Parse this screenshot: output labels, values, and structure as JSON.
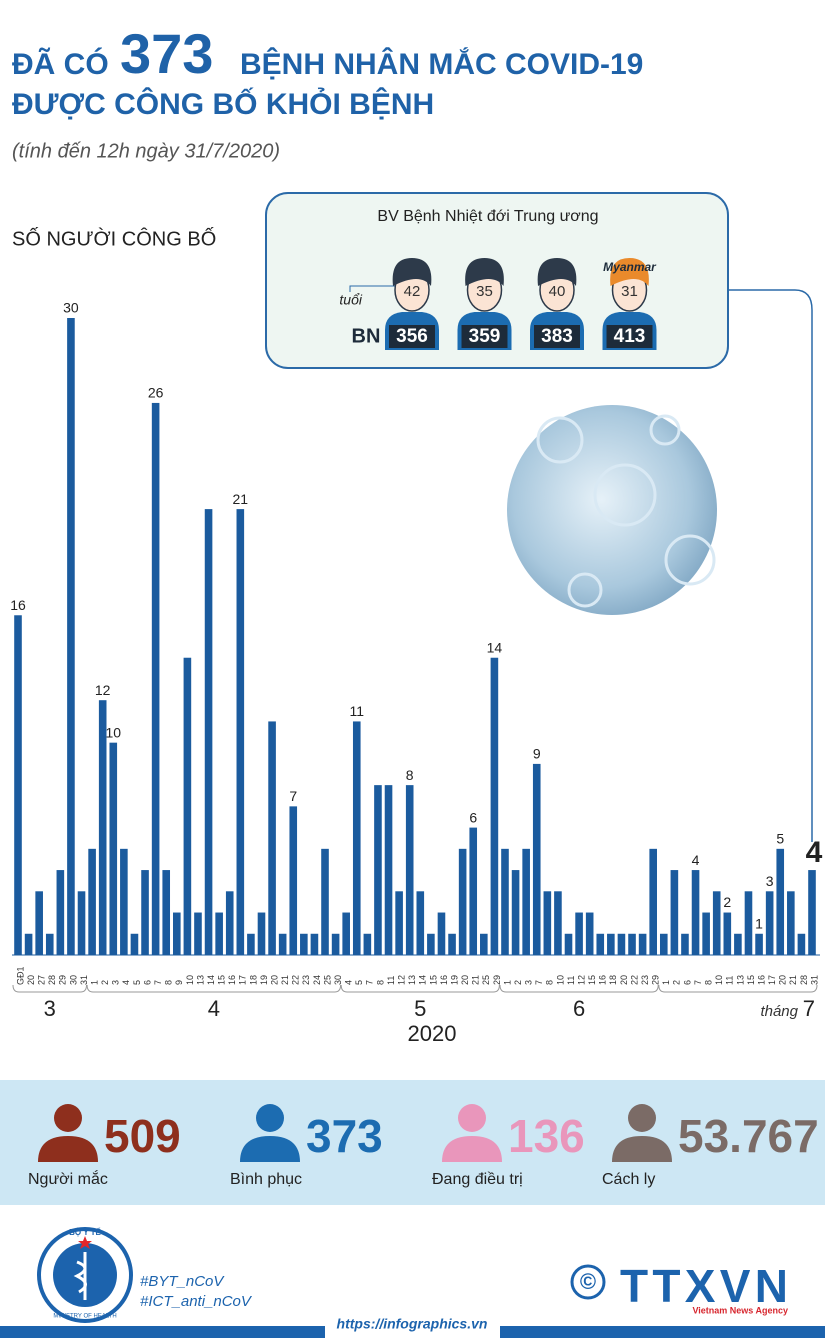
{
  "header": {
    "prefix": "ĐÃ CÓ",
    "number": "373",
    "suffix": "BỆNH NHÂN MẮC COVID-19",
    "line2": "ĐƯỢC CÔNG BỐ KHỎI BỆNH",
    "subtitle": "(tính đến 12h ngày 31/7/2020)"
  },
  "panel": {
    "title": "BV Bệnh Nhiệt đới Trung ương",
    "age_label": "tuổi",
    "bn_label": "BN",
    "patients": [
      {
        "age": 42,
        "id": 356
      },
      {
        "age": 35,
        "id": 359
      },
      {
        "age": 40,
        "id": 383
      },
      {
        "age": 31,
        "id": 413,
        "note": "Myanmar"
      }
    ]
  },
  "chart_data": {
    "type": "bar",
    "y_label": "SỐ NGƯỜI CÔNG BỐ",
    "color": "#1b5b9e",
    "ylim": [
      0,
      30
    ],
    "month_word": "tháng",
    "year": "2020",
    "groups": [
      {
        "label": "3",
        "categories": [
          "GĐ1",
          "20",
          "27",
          "28",
          "29",
          "30",
          "31"
        ],
        "values": [
          16,
          1,
          3,
          1,
          4,
          30,
          3
        ],
        "value_labels": [
          "16",
          null,
          null,
          null,
          null,
          "30",
          null
        ]
      },
      {
        "label": "4",
        "categories": [
          "1",
          "2",
          "3",
          "4",
          "5",
          "6",
          "7",
          "8",
          "9",
          "10",
          "13",
          "14",
          "15",
          "16",
          "17",
          "18",
          "19",
          "20",
          "21",
          "22",
          "23",
          "24",
          "25",
          "30"
        ],
        "values": [
          5,
          12,
          10,
          5,
          1,
          4,
          26,
          4,
          2,
          14,
          2,
          21,
          2,
          3,
          21,
          1,
          2,
          11,
          1,
          7,
          1,
          1,
          5,
          1
        ],
        "value_labels": [
          null,
          "12",
          "10",
          null,
          null,
          null,
          "26",
          null,
          null,
          null,
          null,
          null,
          null,
          null,
          "21",
          null,
          null,
          null,
          null,
          "7",
          null,
          null,
          null,
          null
        ]
      },
      {
        "label": "5",
        "categories": [
          "4",
          "5",
          "7",
          "8",
          "11",
          "12",
          "13",
          "14",
          "15",
          "16",
          "19",
          "20",
          "21",
          "25",
          "29"
        ],
        "values": [
          2,
          11,
          1,
          8,
          8,
          3,
          8,
          3,
          1,
          2,
          1,
          5,
          6,
          1,
          14
        ],
        "value_labels": [
          null,
          "11",
          null,
          null,
          null,
          null,
          "8",
          null,
          null,
          null,
          null,
          null,
          "6",
          null,
          "14"
        ]
      },
      {
        "label": "6",
        "categories": [
          "1",
          "2",
          "3",
          "7",
          "8",
          "10",
          "11",
          "12",
          "15",
          "16",
          "18",
          "20",
          "22",
          "23",
          "29"
        ],
        "values": [
          5,
          4,
          5,
          9,
          3,
          3,
          1,
          2,
          2,
          1,
          1,
          1,
          1,
          1,
          5
        ],
        "value_labels": [
          null,
          null,
          null,
          "9",
          null,
          null,
          null,
          null,
          null,
          null,
          null,
          null,
          null,
          null,
          null
        ]
      },
      {
        "label": "7",
        "categories": [
          "1",
          "2",
          "6",
          "7",
          "8",
          "10",
          "11",
          "13",
          "15",
          "16",
          "17",
          "20",
          "21",
          "28",
          "31"
        ],
        "values": [
          1,
          4,
          1,
          4,
          2,
          3,
          2,
          1,
          3,
          1,
          3,
          5,
          3,
          1,
          4
        ],
        "value_labels": [
          null,
          null,
          null,
          "4",
          null,
          null,
          "2",
          null,
          null,
          "1",
          "3",
          "5",
          null,
          null,
          "4"
        ]
      }
    ]
  },
  "stats": [
    {
      "value": "509",
      "label": "Người mắc",
      "color": "#8e2f1d"
    },
    {
      "value": "373",
      "label": "Bình phục",
      "color": "#1c6cb1"
    },
    {
      "value": "136",
      "label": "Đang điều trị",
      "color": "#e996bb"
    },
    {
      "value": "53.767",
      "label": "Cách ly",
      "color": "#7b6b66"
    }
  ],
  "footer": {
    "ministry_top": "BỘ Y TẾ",
    "ministry_bottom": "MINISTRY OF HEALTH",
    "hashtags": [
      "#BYT_nCoV",
      "#ICT_anti_nCoV"
    ],
    "url": "https://infographics.vn",
    "copyright": "©",
    "agency": "TTXVN",
    "agency_sub": "Vietnam News Agency"
  }
}
